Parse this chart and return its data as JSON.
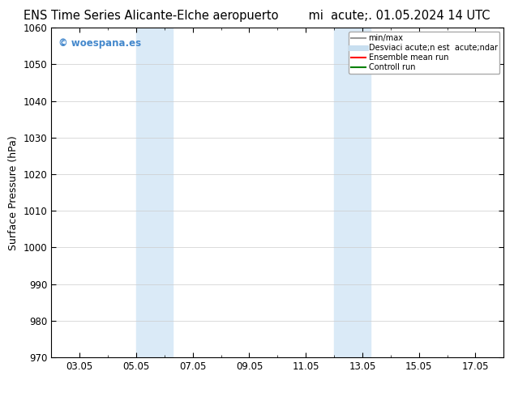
{
  "title_left": "ENS Time Series Alicante-Elche aeropuerto",
  "title_right": "mi  acute;. 01.05.2024 14 UTC",
  "ylabel": "Surface Pressure (hPa)",
  "ylim": [
    970,
    1060
  ],
  "yticks": [
    970,
    980,
    990,
    1000,
    1010,
    1020,
    1030,
    1040,
    1050,
    1060
  ],
  "xtick_labels": [
    "03.05",
    "05.05",
    "07.05",
    "09.05",
    "11.05",
    "13.05",
    "15.05",
    "17.05"
  ],
  "xtick_positions": [
    2,
    4,
    6,
    8,
    10,
    12,
    14,
    16
  ],
  "xlim": [
    1,
    17
  ],
  "background_color": "#ffffff",
  "plot_bg_color": "#ffffff",
  "shaded_bands": [
    {
      "x_start": 4.0,
      "x_end": 5.3,
      "color": "#daeaf7"
    },
    {
      "x_start": 11.0,
      "x_end": 12.3,
      "color": "#daeaf7"
    }
  ],
  "watermark_text": "© woespana.es",
  "watermark_color": "#4488cc",
  "legend_entries": [
    {
      "label": "min/max",
      "color": "#999999",
      "lw": 1.5
    },
    {
      "label": "Desviaci acute;n est  acute;ndar",
      "color": "#c8dff0",
      "lw": 5
    },
    {
      "label": "Ensemble mean run",
      "color": "#ff0000",
      "lw": 1.5
    },
    {
      "label": "Controll run",
      "color": "#008000",
      "lw": 1.5
    }
  ],
  "grid_color": "#cccccc",
  "tick_fontsize": 8.5,
  "label_fontsize": 9,
  "title_fontsize": 10.5
}
